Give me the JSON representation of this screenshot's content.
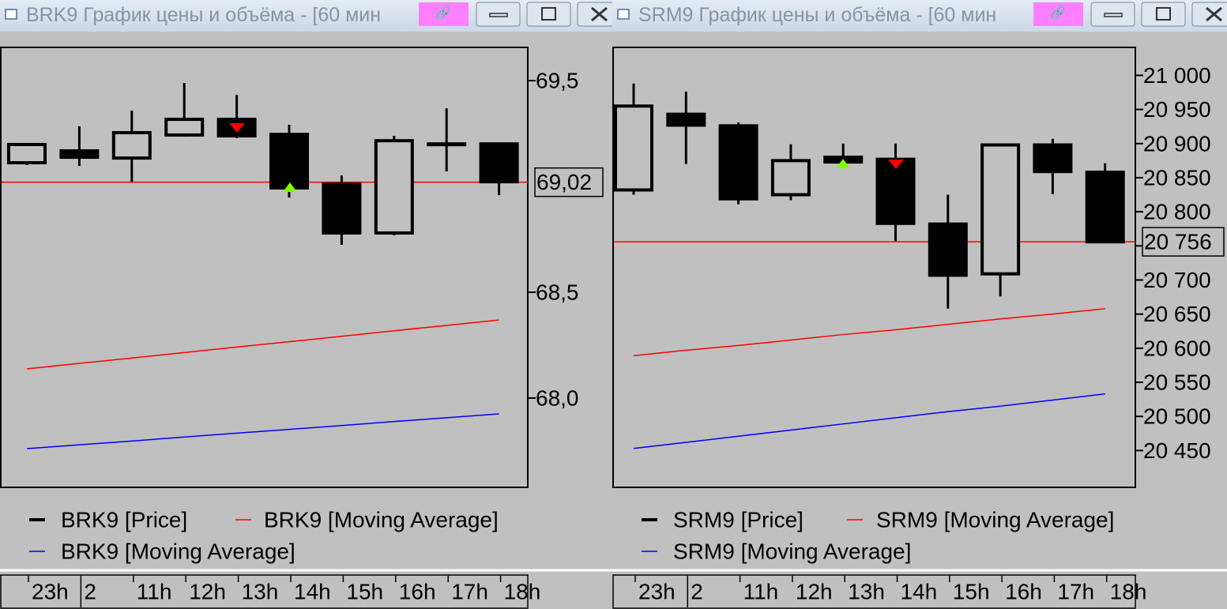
{
  "chart_data": [
    {
      "type": "candlestick",
      "window_title": "BRK9 График цены и объёма - [60 мин",
      "categories": [
        "23h",
        "2",
        "11h",
        "12h",
        "13h",
        "14h",
        "15h",
        "16h",
        "17h",
        "18h"
      ],
      "series": [
        {
          "name": "BRK9 [Price]",
          "color": "#000000",
          "open": [
            69.112,
            69.168,
            69.134,
            69.243,
            69.317,
            69.246,
            69.011,
            68.78,
            69.201,
            69.201
          ],
          "high": [
            69.198,
            69.284,
            69.358,
            69.489,
            69.433,
            69.291,
            69.052,
            69.239,
            69.369,
            69.201
          ],
          "low": [
            69.101,
            69.097,
            69.022,
            69.235,
            69.228,
            68.948,
            68.724,
            68.769,
            69.071,
            68.959
          ],
          "close": [
            69.198,
            69.138,
            69.254,
            69.317,
            69.239,
            68.993,
            68.78,
            69.216,
            69.199,
            69.022
          ]
        },
        {
          "name": "BRK9 [Moving Average]",
          "color": "#ff0000",
          "values": [
            68.138,
            68.164,
            68.189,
            68.215,
            68.241,
            68.266,
            68.292,
            68.318,
            68.343,
            68.369
          ]
        },
        {
          "name": "BRK9 [Moving Average]",
          "color": "#0000ff",
          "values": [
            67.761,
            67.779,
            67.797,
            67.816,
            67.834,
            67.852,
            67.87,
            67.889,
            67.907,
            67.925
          ]
        }
      ],
      "ylim": [
        67.578,
        69.657
      ],
      "yticks": [
        {
          "value": 69.5,
          "label": "69,5"
        },
        {
          "value": 68.5,
          "label": "68,5"
        },
        {
          "value": 68.0,
          "label": "68,0"
        }
      ],
      "current_price": {
        "value": 69.02,
        "label": "69,02",
        "color": "#ff0000"
      }
    },
    {
      "type": "candlestick",
      "window_title": "SRM9 График цены и объёма - [60 мин",
      "categories": [
        "23h",
        "2",
        "11h",
        "12h",
        "13h",
        "14h",
        "15h",
        "16h",
        "17h",
        "18h"
      ],
      "series": [
        {
          "name": "SRM9 [Price]",
          "color": "#000000",
          "open": [
            20832,
            20943,
            20926,
            20825,
            20880,
            20877,
            20782,
            20709,
            20898,
            20858
          ],
          "high": [
            20988,
            20976,
            20931,
            20899,
            20900,
            20900,
            20825,
            20899,
            20907,
            20871
          ],
          "low": [
            20825,
            20870,
            20811,
            20817,
            20865,
            20757,
            20658,
            20676,
            20826,
            20756
          ],
          "close": [
            20955,
            20927,
            20819,
            20875,
            20873,
            20783,
            20707,
            20898,
            20859,
            20756
          ]
        },
        {
          "name": "SRM9 [Moving Average]",
          "color": "#ff0000",
          "values": [
            20589,
            20597,
            20604,
            20612,
            20620,
            20627,
            20635,
            20643,
            20650,
            20658
          ]
        },
        {
          "name": "SRM9 [Moving Average]",
          "color": "#0000ff",
          "values": [
            20453,
            20462,
            20471,
            20480,
            20489,
            20498,
            20507,
            20515,
            20524,
            20533
          ]
        }
      ],
      "ylim": [
        20396,
        21041
      ],
      "yticks": [
        {
          "value": 21000,
          "label": "21 000"
        },
        {
          "value": 20950,
          "label": "20 950"
        },
        {
          "value": 20900,
          "label": "20 900"
        },
        {
          "value": 20850,
          "label": "20 850"
        },
        {
          "value": 20800,
          "label": "20 800"
        },
        {
          "value": 20750,
          "label": "20 750"
        },
        {
          "value": 20700,
          "label": "20 700"
        },
        {
          "value": 20650,
          "label": "20 650"
        },
        {
          "value": 20600,
          "label": "20 600"
        },
        {
          "value": 20550,
          "label": "20 550"
        },
        {
          "value": 20500,
          "label": "20 500"
        },
        {
          "value": 20450,
          "label": "20 450"
        }
      ],
      "current_price": {
        "value": 20756,
        "label": "20 756",
        "color": "#ff0000"
      }
    }
  ]
}
